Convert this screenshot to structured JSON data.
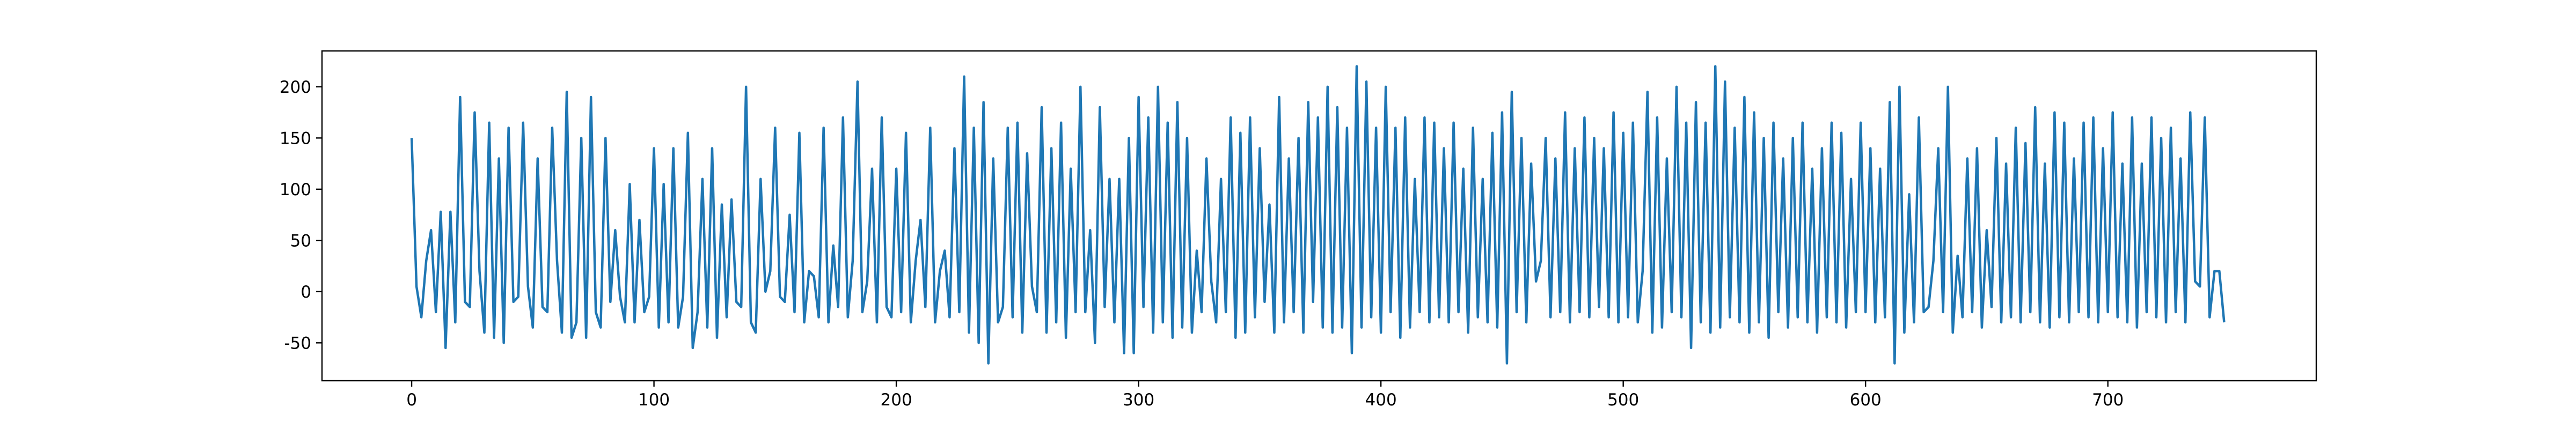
{
  "chart_data": {
    "type": "line",
    "x": [
      0,
      2,
      4,
      6,
      8,
      10,
      12,
      14,
      16,
      18,
      20,
      22,
      24,
      26,
      28,
      30,
      32,
      34,
      36,
      38,
      40,
      42,
      44,
      46,
      48,
      50,
      52,
      54,
      56,
      58,
      60,
      62,
      64,
      66,
      68,
      70,
      72,
      74,
      76,
      78,
      80,
      82,
      84,
      86,
      88,
      90,
      92,
      94,
      96,
      98,
      100,
      102,
      104,
      106,
      108,
      110,
      112,
      114,
      116,
      118,
      120,
      122,
      124,
      126,
      128,
      130,
      132,
      134,
      136,
      138,
      140,
      142,
      144,
      146,
      148,
      150,
      152,
      154,
      156,
      158,
      160,
      162,
      164,
      166,
      168,
      170,
      172,
      174,
      176,
      178,
      180,
      182,
      184,
      186,
      188,
      190,
      192,
      194,
      196,
      198,
      200,
      202,
      204,
      206,
      208,
      210,
      212,
      214,
      216,
      218,
      220,
      222,
      224,
      226,
      228,
      230,
      232,
      234,
      236,
      238,
      240,
      242,
      244,
      246,
      248,
      250,
      252,
      254,
      256,
      258,
      260,
      262,
      264,
      266,
      268,
      270,
      272,
      274,
      276,
      278,
      280,
      282,
      284,
      286,
      288,
      290,
      292,
      294,
      296,
      298,
      300,
      302,
      304,
      306,
      308,
      310,
      312,
      314,
      316,
      318,
      320,
      322,
      324,
      326,
      328,
      330,
      332,
      334,
      336,
      338,
      340,
      342,
      344,
      346,
      348,
      350,
      352,
      354,
      356,
      358,
      360,
      362,
      364,
      366,
      368,
      370,
      372,
      374,
      376,
      378,
      380,
      382,
      384,
      386,
      388,
      390,
      392,
      394,
      396,
      398,
      400,
      402,
      404,
      406,
      408,
      410,
      412,
      414,
      416,
      418,
      420,
      422,
      424,
      426,
      428,
      430,
      432,
      434,
      436,
      438,
      440,
      442,
      444,
      446,
      448,
      450,
      452,
      454,
      456,
      458,
      460,
      462,
      464,
      466,
      468,
      470,
      472,
      474,
      476,
      478,
      480,
      482,
      484,
      486,
      488,
      490,
      492,
      494,
      496,
      498,
      500,
      502,
      504,
      506,
      508,
      510,
      512,
      514,
      516,
      518,
      520,
      522,
      524,
      526,
      528,
      530,
      532,
      534,
      536,
      538,
      540,
      542,
      544,
      546,
      548,
      550,
      552,
      554,
      556,
      558,
      560,
      562,
      564,
      566,
      568,
      570,
      572,
      574,
      576,
      578,
      580,
      582,
      584,
      586,
      588,
      590,
      592,
      594,
      596,
      598,
      600,
      602,
      604,
      606,
      608,
      610,
      612,
      614,
      616,
      618,
      620,
      622,
      624,
      626,
      628,
      630,
      632,
      634,
      636,
      638,
      640,
      642,
      644,
      646,
      648,
      650,
      652,
      654,
      656,
      658,
      660,
      662,
      664,
      666,
      668,
      670,
      672,
      674,
      676,
      678,
      680,
      682,
      684,
      686,
      688,
      690,
      692,
      694,
      696,
      698,
      700,
      702,
      704,
      706,
      708,
      710,
      712,
      714,
      716,
      718,
      720,
      722,
      724,
      726,
      728,
      730,
      732,
      734,
      736,
      738,
      740,
      742,
      744,
      746,
      748
    ],
    "series": [
      {
        "color": "#1f77b4",
        "values": [
          150,
          5,
          -25,
          30,
          60,
          -20,
          78,
          -55,
          78,
          -30,
          190,
          -10,
          -15,
          175,
          20,
          -40,
          165,
          -45,
          130,
          -50,
          160,
          -10,
          -5,
          165,
          5,
          -35,
          130,
          -15,
          -20,
          160,
          30,
          -40,
          195,
          -45,
          -30,
          150,
          -45,
          190,
          -20,
          -35,
          150,
          -10,
          60,
          -5,
          -30,
          105,
          -30,
          70,
          -20,
          -5,
          140,
          -35,
          105,
          -30,
          140,
          -35,
          -5,
          155,
          -55,
          -20,
          110,
          -35,
          140,
          -45,
          85,
          -25,
          90,
          -10,
          -15,
          200,
          -30,
          -40,
          110,
          0,
          20,
          160,
          -5,
          -10,
          75,
          -20,
          155,
          -30,
          20,
          15,
          -25,
          160,
          -30,
          45,
          -15,
          170,
          -25,
          30,
          205,
          -20,
          10,
          120,
          -30,
          170,
          -15,
          -25,
          120,
          -20,
          155,
          -30,
          30,
          70,
          -15,
          160,
          -30,
          20,
          40,
          -25,
          140,
          -20,
          210,
          -40,
          160,
          -50,
          185,
          -70,
          130,
          -30,
          -15,
          160,
          -25,
          165,
          -40,
          135,
          5,
          -20,
          180,
          -40,
          140,
          -30,
          165,
          -45,
          120,
          -20,
          200,
          -20,
          60,
          -50,
          180,
          -15,
          110,
          -30,
          110,
          -60,
          150,
          -60,
          190,
          -15,
          170,
          -40,
          200,
          -30,
          165,
          -45,
          185,
          -35,
          150,
          -40,
          40,
          -20,
          130,
          10,
          -30,
          110,
          -20,
          170,
          -45,
          155,
          -40,
          170,
          -25,
          140,
          -10,
          85,
          -40,
          190,
          -30,
          130,
          -20,
          150,
          -40,
          185,
          -10,
          170,
          -35,
          200,
          -40,
          180,
          -35,
          160,
          -60,
          220,
          -35,
          205,
          -25,
          160,
          -40,
          200,
          -20,
          160,
          -45,
          170,
          -35,
          110,
          -20,
          170,
          -30,
          165,
          -25,
          140,
          -30,
          165,
          -20,
          120,
          -40,
          160,
          -25,
          110,
          -30,
          155,
          -35,
          175,
          -70,
          195,
          -20,
          150,
          -30,
          125,
          10,
          30,
          150,
          -25,
          130,
          -20,
          175,
          -30,
          140,
          -20,
          170,
          -25,
          150,
          -15,
          140,
          -25,
          175,
          -30,
          155,
          -25,
          165,
          -30,
          20,
          195,
          -40,
          170,
          -35,
          130,
          -20,
          200,
          -25,
          165,
          -55,
          185,
          -30,
          165,
          -40,
          220,
          -35,
          205,
          -25,
          160,
          -30,
          190,
          -40,
          175,
          -30,
          150,
          -45,
          165,
          -20,
          130,
          -35,
          150,
          -25,
          165,
          -30,
          120,
          -40,
          140,
          -25,
          165,
          -30,
          155,
          -35,
          110,
          -20,
          165,
          -20,
          140,
          -30,
          120,
          -25,
          185,
          -70,
          200,
          -40,
          95,
          -30,
          170,
          -20,
          -15,
          30,
          140,
          -20,
          200,
          -40,
          35,
          -25,
          130,
          -20,
          140,
          -35,
          60,
          -15,
          150,
          -30,
          125,
          -25,
          160,
          -30,
          145,
          -20,
          180,
          -30,
          125,
          -35,
          175,
          -25,
          165,
          -30,
          130,
          -20,
          165,
          -25,
          170,
          -30,
          140,
          -20,
          175,
          -25,
          125,
          -30,
          170,
          -35,
          125,
          -20,
          170,
          -25,
          150,
          -30,
          160,
          -20,
          130,
          -30,
          175,
          10,
          5,
          170,
          -25,
          20,
          20,
          -30
        ]
      }
    ],
    "xlim": [
      -37,
      786
    ],
    "ylim": [
      -87,
      235
    ],
    "xticks": [
      0,
      100,
      200,
      300,
      400,
      500,
      600,
      700
    ],
    "yticks": [
      -50,
      0,
      50,
      100,
      150,
      200
    ]
  }
}
